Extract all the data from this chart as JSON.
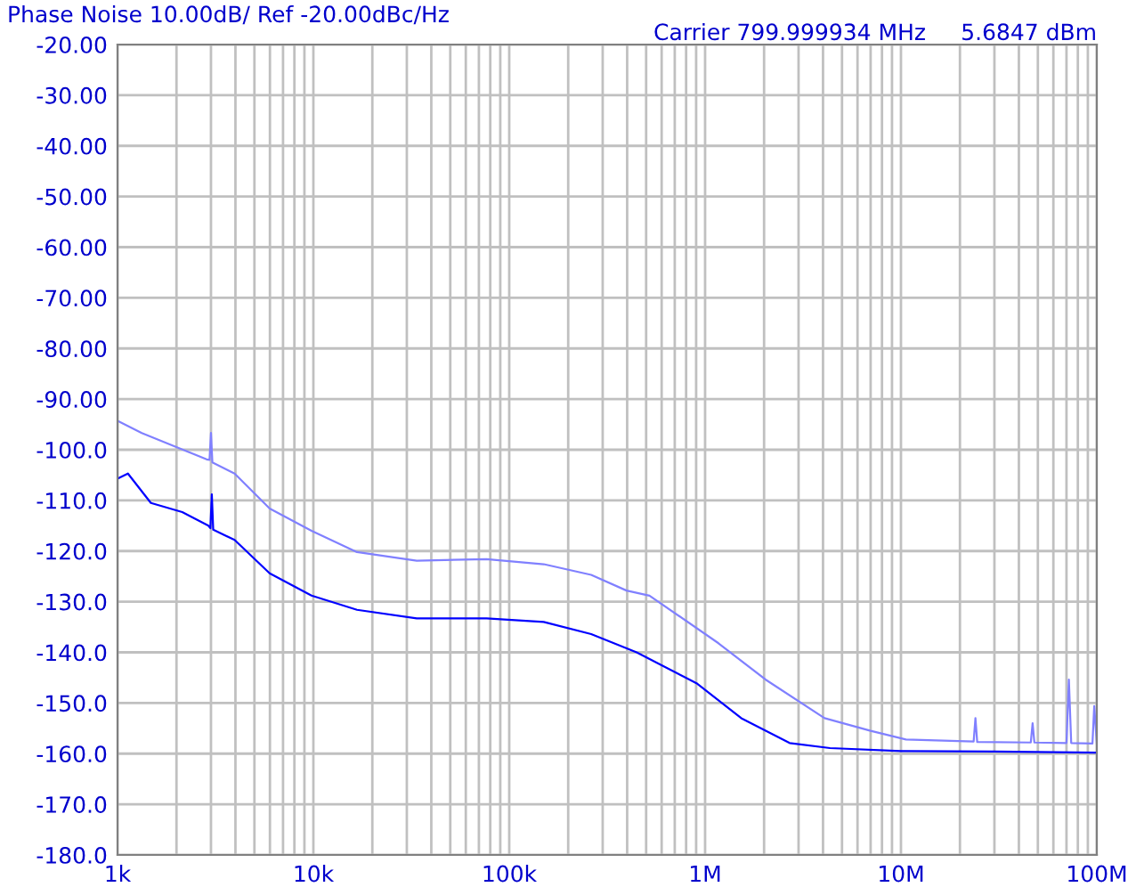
{
  "chart_data": {
    "type": "line",
    "title": "Phase Noise 10.00dB/ Ref -20.00dBc/Hz",
    "annotations": [
      "Carrier 799.999934 MHz",
      "5.6847 dBm"
    ],
    "log": "x",
    "grid": true,
    "marker": "none",
    "line_style": "solid",
    "xlim": [
      1000,
      100000000
    ],
    "ylim": [
      -180,
      -20
    ],
    "xticks": [
      {
        "value": 1000,
        "label": "1k"
      },
      {
        "value": 2000,
        "label": null
      },
      {
        "value": 3000,
        "label": null
      },
      {
        "value": 4000,
        "label": null
      },
      {
        "value": 5000,
        "label": null
      },
      {
        "value": 6000,
        "label": null
      },
      {
        "value": 7000,
        "label": null
      },
      {
        "value": 8000,
        "label": null
      },
      {
        "value": 9000,
        "label": null
      },
      {
        "value": 10000,
        "label": "10k"
      },
      {
        "value": 20000,
        "label": null
      },
      {
        "value": 30000,
        "label": null
      },
      {
        "value": 40000,
        "label": null
      },
      {
        "value": 50000,
        "label": null
      },
      {
        "value": 60000,
        "label": null
      },
      {
        "value": 70000,
        "label": null
      },
      {
        "value": 80000,
        "label": null
      },
      {
        "value": 90000,
        "label": null
      },
      {
        "value": 100000,
        "label": "100k"
      },
      {
        "value": 200000,
        "label": null
      },
      {
        "value": 300000,
        "label": null
      },
      {
        "value": 400000,
        "label": null
      },
      {
        "value": 500000,
        "label": null
      },
      {
        "value": 600000,
        "label": null
      },
      {
        "value": 700000,
        "label": null
      },
      {
        "value": 800000,
        "label": null
      },
      {
        "value": 900000,
        "label": null
      },
      {
        "value": 1000000,
        "label": "1M"
      },
      {
        "value": 2000000,
        "label": null
      },
      {
        "value": 3000000,
        "label": null
      },
      {
        "value": 4000000,
        "label": null
      },
      {
        "value": 5000000,
        "label": null
      },
      {
        "value": 6000000,
        "label": null
      },
      {
        "value": 7000000,
        "label": null
      },
      {
        "value": 8000000,
        "label": null
      },
      {
        "value": 9000000,
        "label": null
      },
      {
        "value": 10000000,
        "label": "10M"
      },
      {
        "value": 20000000,
        "label": null
      },
      {
        "value": 30000000,
        "label": null
      },
      {
        "value": 40000000,
        "label": null
      },
      {
        "value": 50000000,
        "label": null
      },
      {
        "value": 60000000,
        "label": null
      },
      {
        "value": 70000000,
        "label": null
      },
      {
        "value": 80000000,
        "label": null
      },
      {
        "value": 90000000,
        "label": null
      },
      {
        "value": 100000000,
        "label": "100M"
      }
    ],
    "yticks": [
      {
        "value": -20,
        "label": "-20.00"
      },
      {
        "value": -30,
        "label": "-30.00"
      },
      {
        "value": -40,
        "label": "-40.00"
      },
      {
        "value": -50,
        "label": "-50.00"
      },
      {
        "value": -60,
        "label": "-60.00"
      },
      {
        "value": -70,
        "label": "-70.00"
      },
      {
        "value": -80,
        "label": "-80.00"
      },
      {
        "value": -90,
        "label": "-90.00"
      },
      {
        "value": -100,
        "label": "-100.0"
      },
      {
        "value": -110,
        "label": "-110.0"
      },
      {
        "value": -120,
        "label": "-120.0"
      },
      {
        "value": -130,
        "label": "-130.0"
      },
      {
        "value": -140,
        "label": "-140.0"
      },
      {
        "value": -150,
        "label": "-150.0"
      },
      {
        "value": -160,
        "label": "-160.0"
      },
      {
        "value": -170,
        "label": "-170.0"
      },
      {
        "value": -180,
        "label": "-180.0"
      }
    ],
    "series": [
      {
        "color": "#8080ff",
        "x": [
          1000,
          1330,
          2010,
          2850,
          2950,
          3000,
          3050,
          3960,
          5980,
          9780,
          16700,
          33700,
          76600,
          150000,
          262000,
          397000,
          520000,
          1170000,
          2040000,
          4070000,
          7000000,
          10600000,
          19600000,
          23500000,
          24000000,
          24500000,
          46000000,
          47000000,
          48000000,
          70000000,
          72000000,
          74000000,
          95000000,
          97000000,
          100000000
        ],
        "values": [
          -94.3,
          -96.7,
          -99.5,
          -101.9,
          -102,
          -96.7,
          -102.5,
          -104.7,
          -111.6,
          -116,
          -120.2,
          -121.9,
          -121.6,
          -122.6,
          -124.7,
          -127.8,
          -128.8,
          -138.2,
          -145.4,
          -153,
          -155.5,
          -157.2,
          -157.5,
          -157.6,
          -153,
          -157.7,
          -157.8,
          -154,
          -157.8,
          -157.9,
          -145.4,
          -157.9,
          -158,
          -150.6,
          -158
        ]
      },
      {
        "color": "#0000ff",
        "x": [
          1000,
          1130,
          1480,
          2140,
          2910,
          2980,
          3030,
          3080,
          3960,
          5980,
          9780,
          16700,
          33700,
          76600,
          150000,
          262000,
          447000,
          904000,
          1530000,
          2700000,
          4340000,
          10000000,
          30000000,
          100000000
        ],
        "values": [
          -105.7,
          -104.7,
          -110.5,
          -112.3,
          -115,
          -115.5,
          -108.8,
          -115.8,
          -117.8,
          -124.4,
          -128.8,
          -131.6,
          -133.3,
          -133.3,
          -134,
          -136.4,
          -140,
          -146.1,
          -153,
          -157.9,
          -158.9,
          -159.5,
          -159.6,
          -159.8
        ]
      }
    ]
  }
}
